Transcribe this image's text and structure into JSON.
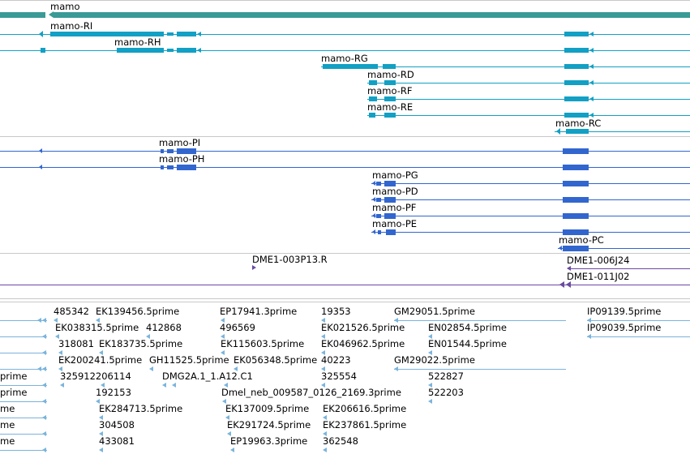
{
  "colors": {
    "gene": "#3a9a96",
    "rna": "#12a0c4",
    "protein": "#3266cf",
    "clone": "#6a4aa0",
    "est": "#7ab4dc",
    "separator": "#c8c8c8"
  },
  "gene_track": {
    "label": "mamo"
  },
  "transcripts": [
    {
      "label": "mamo-RI"
    },
    {
      "label": "mamo-RH"
    },
    {
      "label": "mamo-RG"
    },
    {
      "label": "mamo-RD"
    },
    {
      "label": "mamo-RF"
    },
    {
      "label": "mamo-RE"
    },
    {
      "label": "mamo-RC"
    }
  ],
  "proteins": [
    {
      "label": "mamo-PI"
    },
    {
      "label": "mamo-PH"
    },
    {
      "label": "mamo-PG"
    },
    {
      "label": "mamo-PD"
    },
    {
      "label": "mamo-PF"
    },
    {
      "label": "mamo-PE"
    },
    {
      "label": "mamo-PC"
    }
  ],
  "clones": [
    {
      "label": "DME1-003P13.R"
    },
    {
      "label": "DME1-006J24"
    },
    {
      "label": "DME1-011J02"
    }
  ],
  "ests": [
    {
      "label": "485342"
    },
    {
      "label": "EK139456.5prime"
    },
    {
      "label": "EP17941.3prime"
    },
    {
      "label": "19353"
    },
    {
      "label": "GM29051.5prime"
    },
    {
      "label": "IP09139.5prime"
    },
    {
      "label": "EK038315.5prime"
    },
    {
      "label": "412868"
    },
    {
      "label": "496569"
    },
    {
      "label": "EK021526.5prime"
    },
    {
      "label": "EN02854.5prime"
    },
    {
      "label": "IP09039.5prime"
    },
    {
      "label": "318081"
    },
    {
      "label": "EK183735.5prime"
    },
    {
      "label": "EK115603.5prime"
    },
    {
      "label": "EK046962.5prime"
    },
    {
      "label": "EN01544.5prime"
    },
    {
      "label": "EK200241.5prime"
    },
    {
      "label": "GH11525.5prime"
    },
    {
      "label": "EK056348.5prime"
    },
    {
      "label": "40223"
    },
    {
      "label": "GM29022.5prime"
    },
    {
      "label": "prime"
    },
    {
      "label": "325912206114"
    },
    {
      "label": "DMG2A.1_1.A12.C1"
    },
    {
      "label": "325554"
    },
    {
      "label": "522827"
    },
    {
      "label": "prime"
    },
    {
      "label": "192153"
    },
    {
      "label": "Dmel_neb_009587_0126_2169.3prime"
    },
    {
      "label": "522203"
    },
    {
      "label": "me"
    },
    {
      "label": "EK284713.5prime"
    },
    {
      "label": "EK137009.5prime"
    },
    {
      "label": "EK206616.5prime"
    },
    {
      "label": "me"
    },
    {
      "label": "304508"
    },
    {
      "label": "EK291724.5prime"
    },
    {
      "label": "EK237861.5prime"
    },
    {
      "label": "me"
    },
    {
      "label": "433081"
    },
    {
      "label": "EP19963.3prime"
    },
    {
      "label": "362548"
    }
  ]
}
